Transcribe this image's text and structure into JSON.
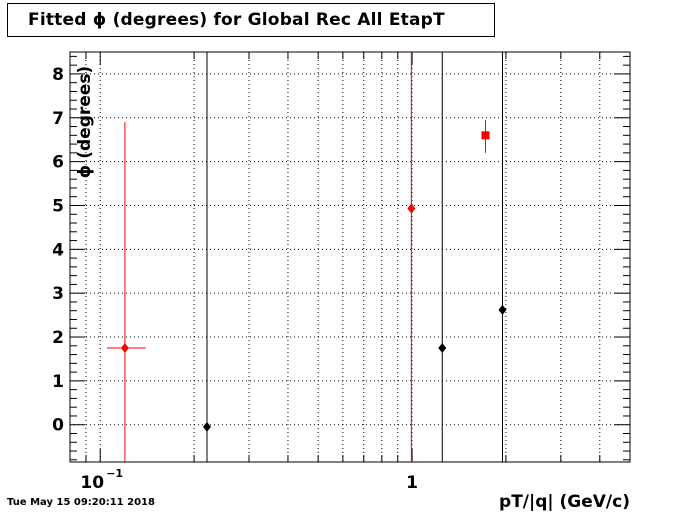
{
  "title": "Fitted ϕ (degrees) for Global Rec All EtapT",
  "timestamp": "Tue May 15 09:20:11 2018",
  "chart_data": {
    "type": "scatter",
    "title": "Fitted ϕ (degrees) for Global Rec All EtapT",
    "xlabel": "pT/|q| (GeV/c)",
    "ylabel": "ϕ (degrees)",
    "x_scale": "log",
    "xlim": [
      0.08,
      5.0
    ],
    "ylim": [
      -0.85,
      8.5
    ],
    "grid": true,
    "x_tick_labels": [
      {
        "value": 0.1,
        "label": "10",
        "exponent": "−1"
      },
      {
        "value": 1,
        "label": "1",
        "exponent": ""
      }
    ],
    "y_ticks": [
      0,
      1,
      2,
      3,
      4,
      5,
      6,
      7,
      8
    ],
    "series": [
      {
        "color": "#000000",
        "marker": "diamond",
        "points": [
          {
            "x": 0.22,
            "y": -0.05,
            "ylo": -0.85,
            "yhi": 8.5
          },
          {
            "x": 1.25,
            "y": 1.75,
            "ylo": -0.85,
            "yhi": 8.5
          },
          {
            "x": 1.95,
            "y": 2.62,
            "ylo": -0.85,
            "yhi": 8.5
          }
        ]
      },
      {
        "color": "#ff0000",
        "marker": "diamond",
        "points": [
          {
            "x": 0.12,
            "y": 1.75,
            "ylo": -0.85,
            "yhi": 6.9,
            "xlo": 0.105,
            "xhi": 0.14
          },
          {
            "x": 0.995,
            "y": 4.93,
            "ylo": -0.85,
            "yhi": 8.5
          }
        ]
      },
      {
        "color": "#ff0000",
        "marker": "square",
        "points": [
          {
            "x": 1.72,
            "y": 6.6,
            "ylo": 6.2,
            "yhi": 6.95
          }
        ]
      }
    ]
  }
}
